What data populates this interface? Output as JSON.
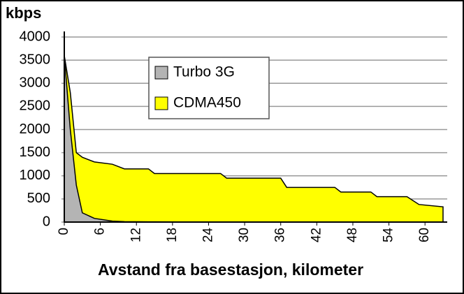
{
  "chart_data": {
    "type": "area",
    "title": "kbps",
    "x_label": "Avstand fra basestasjon, kilometer",
    "x": [
      0,
      1,
      2,
      3,
      5,
      8,
      10,
      14,
      15,
      26,
      27,
      36,
      37,
      45,
      46,
      51,
      52,
      57,
      59,
      63
    ],
    "series": [
      {
        "name": "Turbo 3G",
        "color": "#b4b4b4",
        "values": [
          3600,
          2000,
          800,
          200,
          80,
          20,
          10,
          5,
          5,
          0,
          0,
          0,
          0,
          0,
          0,
          0,
          0,
          0,
          0,
          0
        ]
      },
      {
        "name": "CDMA450",
        "color": "#ffff00",
        "values": [
          3600,
          2800,
          1500,
          1400,
          1300,
          1250,
          1150,
          1150,
          1050,
          1050,
          950,
          950,
          750,
          750,
          650,
          650,
          550,
          550,
          380,
          330
        ]
      }
    ],
    "xlim": [
      0,
      63
    ],
    "xticks": [
      0,
      6,
      12,
      18,
      24,
      30,
      36,
      42,
      48,
      54,
      60
    ],
    "ylim": [
      0,
      4000
    ],
    "yticks": [
      0,
      500,
      1000,
      1500,
      2000,
      2500,
      3000,
      3500,
      4000
    ],
    "grid": true,
    "legend": "upper left"
  }
}
